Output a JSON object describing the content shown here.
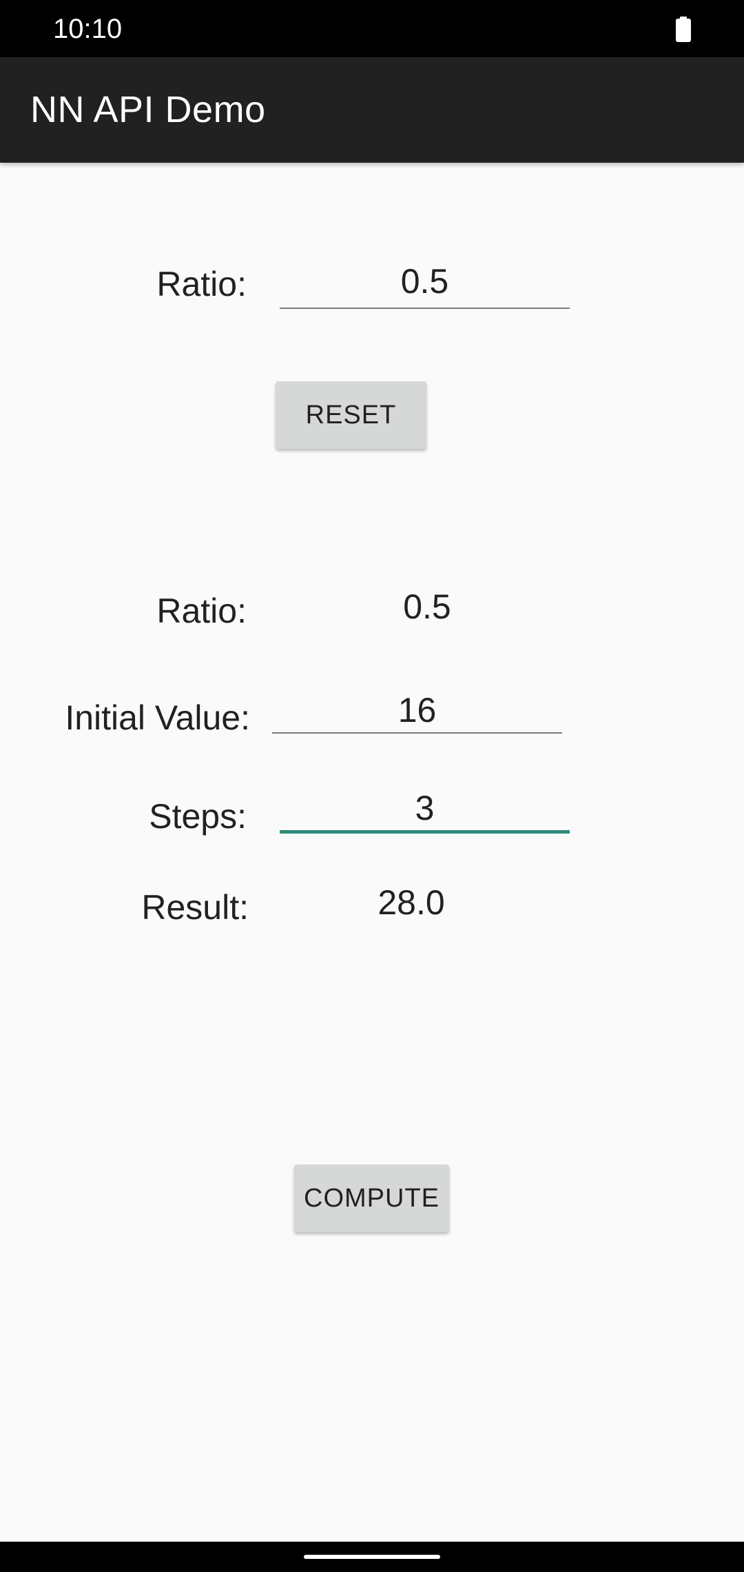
{
  "status_bar": {
    "time": "10:10",
    "battery_icon": "battery-full-icon"
  },
  "app_bar": {
    "title": "NN API Demo"
  },
  "ratio_section": {
    "label": "Ratio:",
    "input_value": "0.5",
    "reset_label": "RESET"
  },
  "compute_section": {
    "ratio_label": "Ratio:",
    "ratio_value": "0.5",
    "initial_value_label": "Initial Value:",
    "initial_value_input": "16",
    "steps_label": "Steps:",
    "steps_input": "3",
    "result_label": "Result:",
    "result_value": "28.0",
    "compute_label": "COMPUTE"
  },
  "colors": {
    "accent": "#2e8b7a",
    "app_bar": "#212121",
    "button": "#d6d7d7",
    "background": "#fafafa"
  }
}
